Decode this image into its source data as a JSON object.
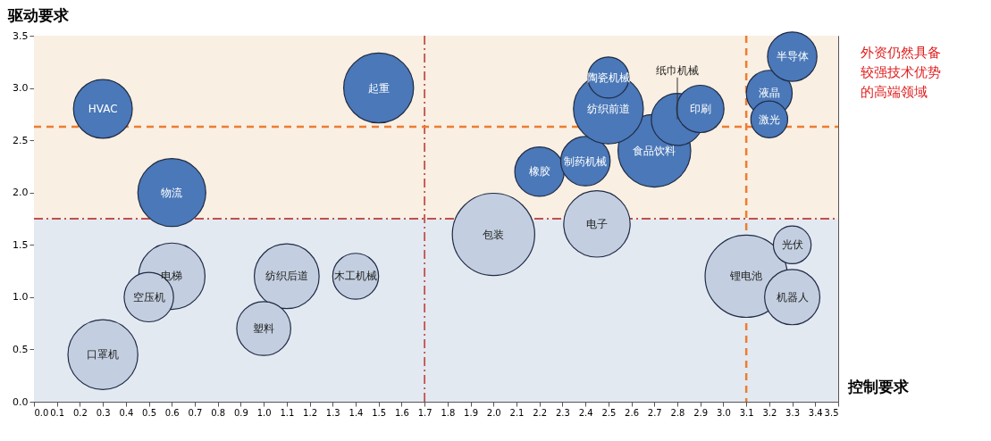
{
  "chart_data": {
    "type": "bubble",
    "xlabel": "控制要求",
    "ylabel": "驱动要求",
    "xlim": [
      0,
      3.5
    ],
    "ylim": [
      0,
      3.5
    ],
    "xticks": [
      {
        "value": 0,
        "label": "0.0"
      },
      0.1,
      0.2,
      0.3,
      0.4,
      0.5,
      0.6,
      0.7,
      0.8,
      0.9,
      {
        "value": 1,
        "label": "1.0"
      },
      1.1,
      1.2,
      1.3,
      1.4,
      1.5,
      1.6,
      1.7,
      1.8,
      1.9,
      {
        "value": 2,
        "label": "2.0"
      },
      2.1,
      2.2,
      2.3,
      2.4,
      2.5,
      2.6,
      2.7,
      2.8,
      2.9,
      {
        "value": 3,
        "label": "3.0"
      },
      3.1,
      3.2,
      3.3,
      3.4,
      3.5
    ],
    "yticks": [
      {
        "value": 0,
        "label": "0.0"
      },
      0.5,
      {
        "value": 1,
        "label": "1.0"
      },
      1.5,
      {
        "value": 2,
        "label": "2.0"
      },
      2.5,
      {
        "value": 3,
        "label": "3.0"
      },
      3.5
    ],
    "grid": false,
    "legend": false,
    "series": [
      {
        "color": "#4a78b8",
        "x": [
          0.3,
          1.5,
          0.6,
          2.2,
          2.4,
          2.7,
          2.5,
          2.5,
          2.8,
          2.9,
          3.2,
          3.2,
          3.3
        ],
        "values": [
          2.8,
          3.0,
          2.0,
          2.2,
          2.3,
          2.4,
          2.8,
          3.1,
          2.7,
          2.8,
          2.95,
          2.7,
          3.3
        ],
        "sizes": [
          0.51,
          0.72,
          0.68,
          0.36,
          0.36,
          0.78,
          0.72,
          0.25,
          0.4,
          0.33,
          0.31,
          0.2,
          0.36
        ]
      },
      {
        "color": "#c3cfe0",
        "x": [
          0.6,
          0.5,
          0.3,
          1.1,
          1.4,
          1.0,
          2.0,
          2.45,
          3.1,
          3.3,
          3.3
        ],
        "values": [
          1.2,
          1.0,
          0.45,
          1.2,
          1.2,
          0.7,
          1.6,
          1.7,
          1.2,
          1.5,
          1.0
        ],
        "sizes": [
          0.65,
          0.36,
          0.72,
          0.62,
          0.31,
          0.43,
          1,
          0.65,
          1,
          0.21,
          0.45
        ]
      }
    ],
    "bands": [
      {
        "axis": "y",
        "from": 1.75,
        "to": 3.5,
        "color": "#f9efe2"
      },
      {
        "axis": "y",
        "from": 0,
        "to": 1.75,
        "color": "#e3e9f1"
      }
    ],
    "ref_lines": [
      {
        "axis": "x",
        "value": 1.7,
        "color": "#c0504d",
        "line_style": "dashdot"
      },
      {
        "axis": "y",
        "value": 1.75,
        "color": "#c0504d",
        "line_style": "dashdot"
      },
      {
        "axis": "x",
        "value": 3.1,
        "color": "#ed7d31",
        "line_style": "dashed"
      },
      {
        "axis": "y",
        "value": 2.63,
        "color": "#ed7d31",
        "line_style": "dashed"
      }
    ],
    "annotations": [
      {
        "text": "HVAC",
        "x": 0.3,
        "y": 2.8
      },
      {
        "text": "起重",
        "x": 1.5,
        "y": 3.0
      },
      {
        "text": "物流",
        "x": 0.6,
        "y": 2.0
      },
      {
        "text": "橡胶",
        "x": 2.2,
        "y": 2.2
      },
      {
        "text": "制药机械",
        "x": 2.4,
        "y": 2.3
      },
      {
        "text": "食品饮料",
        "x": 2.7,
        "y": 2.4
      },
      {
        "text": "纺织前道",
        "x": 2.5,
        "y": 2.8
      },
      {
        "text": "陶瓷机械",
        "x": 2.5,
        "y": 3.1
      },
      {
        "text": "印刷",
        "x": 2.9,
        "y": 2.8
      },
      {
        "text": "纸巾机械",
        "x": 2.8,
        "y": 2.7
      },
      {
        "text": "液晶",
        "x": 3.2,
        "y": 2.95
      },
      {
        "text": "激光",
        "x": 3.2,
        "y": 2.7
      },
      {
        "text": "半导体",
        "x": 3.3,
        "y": 3.3
      },
      {
        "text": "电梯",
        "x": 0.6,
        "y": 1.2
      },
      {
        "text": "空压机",
        "x": 0.5,
        "y": 1.0
      },
      {
        "text": "口罩机",
        "x": 0.3,
        "y": 0.45
      },
      {
        "text": "纺织后道",
        "x": 1.1,
        "y": 1.2
      },
      {
        "text": "木工机械",
        "x": 1.4,
        "y": 1.2
      },
      {
        "text": "塑料",
        "x": 1.0,
        "y": 0.7
      },
      {
        "text": "包装",
        "x": 2.0,
        "y": 1.6
      },
      {
        "text": "电子",
        "x": 2.45,
        "y": 1.7
      },
      {
        "text": "锂电池",
        "x": 3.1,
        "y": 1.2
      },
      {
        "text": "光伏",
        "x": 3.3,
        "y": 1.5
      },
      {
        "text": "机器人",
        "x": 3.3,
        "y": 1.0
      },
      "外资仍然具备较强技术优势的高端领域"
    ]
  }
}
